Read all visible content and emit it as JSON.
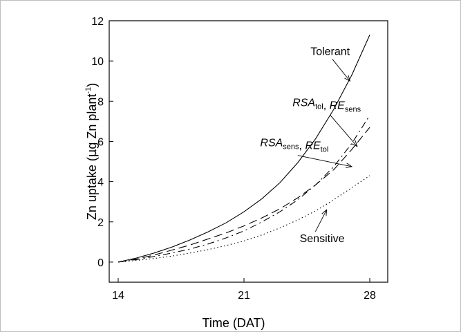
{
  "chart_data": {
    "type": "line",
    "xlabel": "Time (DAT)",
    "ylabel": {
      "main": "Zn uptake (",
      "mu": "µ",
      "rest": "g Zn plant",
      "sup": "-1",
      "close": ")"
    },
    "xlim": [
      13.5,
      29
    ],
    "ylim": [
      -1,
      12
    ],
    "xticks": [
      14,
      21,
      28
    ],
    "yticks": [
      0,
      2,
      4,
      6,
      8,
      10,
      12
    ],
    "grid": false,
    "legend": "none",
    "series": [
      {
        "key": "tolerant",
        "dash": "solid",
        "x": [
          14,
          15,
          16,
          17,
          18,
          19,
          20,
          21,
          22,
          23,
          24,
          25,
          26,
          27,
          28
        ],
        "values": [
          0,
          0.2,
          0.45,
          0.75,
          1.1,
          1.5,
          1.95,
          2.5,
          3.15,
          3.95,
          4.95,
          6.15,
          7.6,
          9.3,
          11.3
        ]
      },
      {
        "key": "rsa-tol-re-sens",
        "dash": "dash-dot",
        "x": [
          14,
          15,
          16,
          17,
          18,
          19,
          20,
          21,
          22,
          23,
          24,
          25,
          26,
          27,
          28
        ],
        "values": [
          0,
          0.12,
          0.28,
          0.45,
          0.65,
          0.9,
          1.2,
          1.55,
          2.0,
          2.5,
          3.1,
          3.85,
          4.75,
          5.9,
          7.3
        ]
      },
      {
        "key": "rsa-sens-re-tol",
        "dash": "long-dash",
        "x": [
          14,
          15,
          16,
          17,
          18,
          19,
          20,
          21,
          22,
          23,
          24,
          25,
          26,
          27,
          28
        ],
        "values": [
          0,
          0.15,
          0.35,
          0.6,
          0.85,
          1.15,
          1.45,
          1.8,
          2.2,
          2.65,
          3.2,
          3.85,
          4.6,
          5.6,
          6.7
        ]
      },
      {
        "key": "sensitive",
        "dash": "dotted",
        "x": [
          14,
          15,
          16,
          17,
          18,
          19,
          20,
          21,
          22,
          23,
          24,
          25,
          26,
          27,
          28
        ],
        "values": [
          0,
          0.08,
          0.18,
          0.3,
          0.45,
          0.62,
          0.82,
          1.05,
          1.35,
          1.7,
          2.1,
          2.55,
          3.1,
          3.7,
          4.3
        ]
      }
    ],
    "annotations": [
      {
        "key": "tolerant",
        "parts": [
          {
            "t": "Tolerant",
            "style": "normal"
          }
        ],
        "label_at": [
          24.7,
          10.3
        ],
        "arrow_to": [
          26.9,
          9.0
        ]
      },
      {
        "key": "rsa-tol-re-sens",
        "parts": [
          {
            "t": "RSA",
            "style": "italic"
          },
          {
            "t": "tol",
            "style": "sub"
          },
          {
            "t": ", ",
            "style": "normal"
          },
          {
            "t": "RE",
            "style": "italic"
          },
          {
            "t": "sens",
            "style": "sub"
          }
        ],
        "label_at": [
          23.7,
          7.75
        ],
        "arrow_to": [
          27.3,
          5.75
        ]
      },
      {
        "key": "rsa-sens-re-tol",
        "parts": [
          {
            "t": "RSA",
            "style": "italic"
          },
          {
            "t": "sens",
            "style": "sub"
          },
          {
            "t": ", ",
            "style": "normal"
          },
          {
            "t": "RE",
            "style": "italic"
          },
          {
            "t": "tol",
            "style": "sub"
          }
        ],
        "label_at": [
          21.9,
          5.75
        ],
        "arrow_to": [
          27.0,
          4.75
        ]
      },
      {
        "key": "sensitive",
        "parts": [
          {
            "t": "Sensitive",
            "style": "normal"
          }
        ],
        "label_at": [
          24.1,
          1.0
        ],
        "arrow_to": [
          25.6,
          2.6
        ]
      }
    ]
  }
}
